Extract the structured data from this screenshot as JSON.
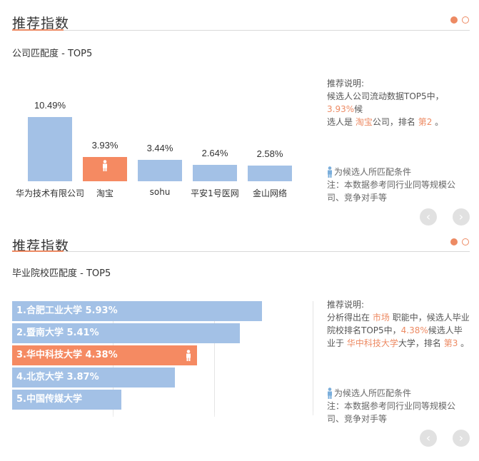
{
  "panel1": {
    "title": "推荐指数",
    "subtitle": "公司匹配度 - TOP5",
    "description": {
      "label": "推荐说明:",
      "line_a": "候选人公司流动数据TOP5中，",
      "pct": "3.93%",
      "line_b": "候",
      "line_c": "选人是",
      "company": "淘宝",
      "line_d": "公司，排名",
      "rank": "第2",
      "line_e": "。"
    },
    "legend_text": "为候选人所匹配条件",
    "note": "注：本数据参考同行业同等规模公司、竞争对手等",
    "prev": "‹",
    "next": "›"
  },
  "panel2": {
    "title": "推荐指数",
    "subtitle": "毕业院校匹配度 - TOP5",
    "description": {
      "label": "推荐说明:",
      "line_a": "分析得出在",
      "field": "市场",
      "line_b": "职能中，候选人毕业院校排名TOP5中，",
      "pct": "4.38%",
      "line_c": "候选人毕业于",
      "school": "华中科技大学",
      "line_d": "大学，排名",
      "rank": "第3",
      "line_e": "。"
    },
    "legend_text": "为候选人所匹配条件",
    "note": "注：本数据参考同行业同等规模公司、竞争对手等",
    "prev": "‹",
    "next": "›"
  },
  "colors": {
    "bar": "#a3c1e6",
    "highlight": "#f58a62",
    "accent": "#ed8a63"
  },
  "chart_data": [
    {
      "type": "bar",
      "categories": [
        "华为技术有限公司",
        "淘宝",
        "sohu",
        "平安1号医网",
        "金山网络"
      ],
      "values": [
        10.49,
        3.93,
        3.44,
        2.64,
        2.58
      ],
      "value_labels": [
        "10.49%",
        "3.93%",
        "3.44%",
        "2.64%",
        "2.58%"
      ],
      "highlight_index": 1,
      "unit": "%"
    },
    {
      "type": "bar",
      "orientation": "horizontal",
      "categories": [
        "1.合肥工业大学",
        "2.暨南大学",
        "3.华中科技大学",
        "4.北京大学",
        "5.中国传媒大学"
      ],
      "values": [
        5.93,
        5.41,
        4.38,
        3.87,
        2.6
      ],
      "value_labels": [
        "5.93%",
        "5.41%",
        "4.38%",
        "3.87%",
        ""
      ],
      "highlight_index": 2,
      "unit": "%"
    }
  ]
}
